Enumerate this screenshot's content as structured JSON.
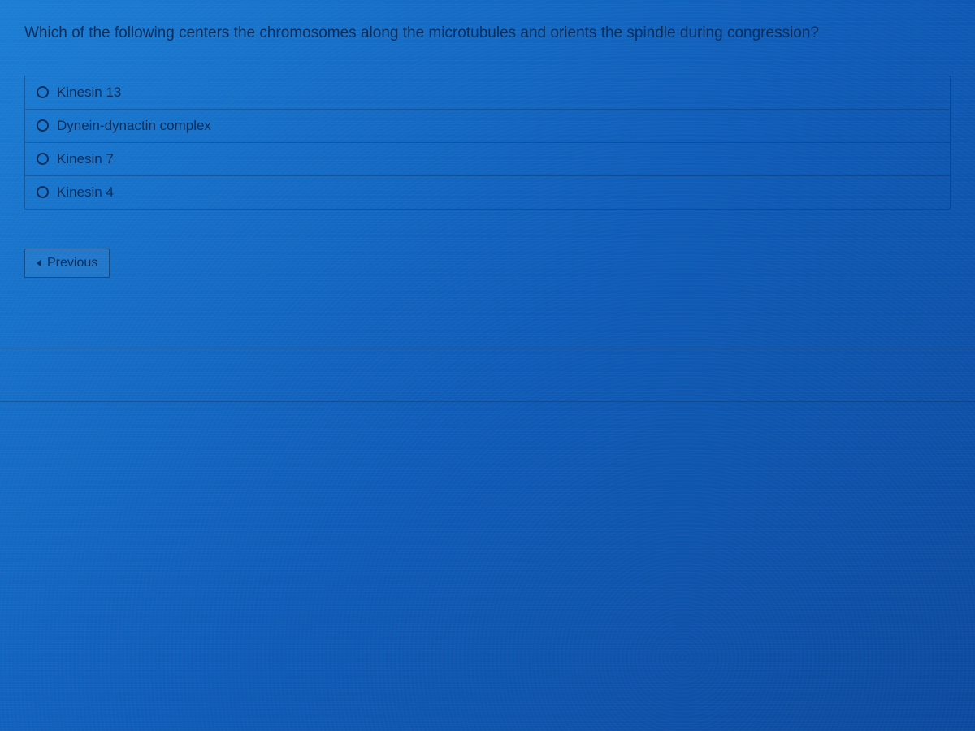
{
  "question": {
    "text": "Which of the following centers the chromosomes along the microtubules and orients the spindle during congression?",
    "options": [
      {
        "label": "Kinesin 13"
      },
      {
        "label": "Dynein-dynactin complex"
      },
      {
        "label": "Kinesin 7"
      },
      {
        "label": "Kinesin 4"
      }
    ]
  },
  "nav": {
    "previous_label": "Previous"
  },
  "styling": {
    "background_gradient": [
      "#1a7fd4",
      "#0d5db8",
      "#0a4a9e"
    ],
    "text_color": "#0a2e5c",
    "border_color": "rgba(10,46,92,0.4)",
    "question_fontsize": 19,
    "option_fontsize": 17,
    "button_fontsize": 16
  }
}
